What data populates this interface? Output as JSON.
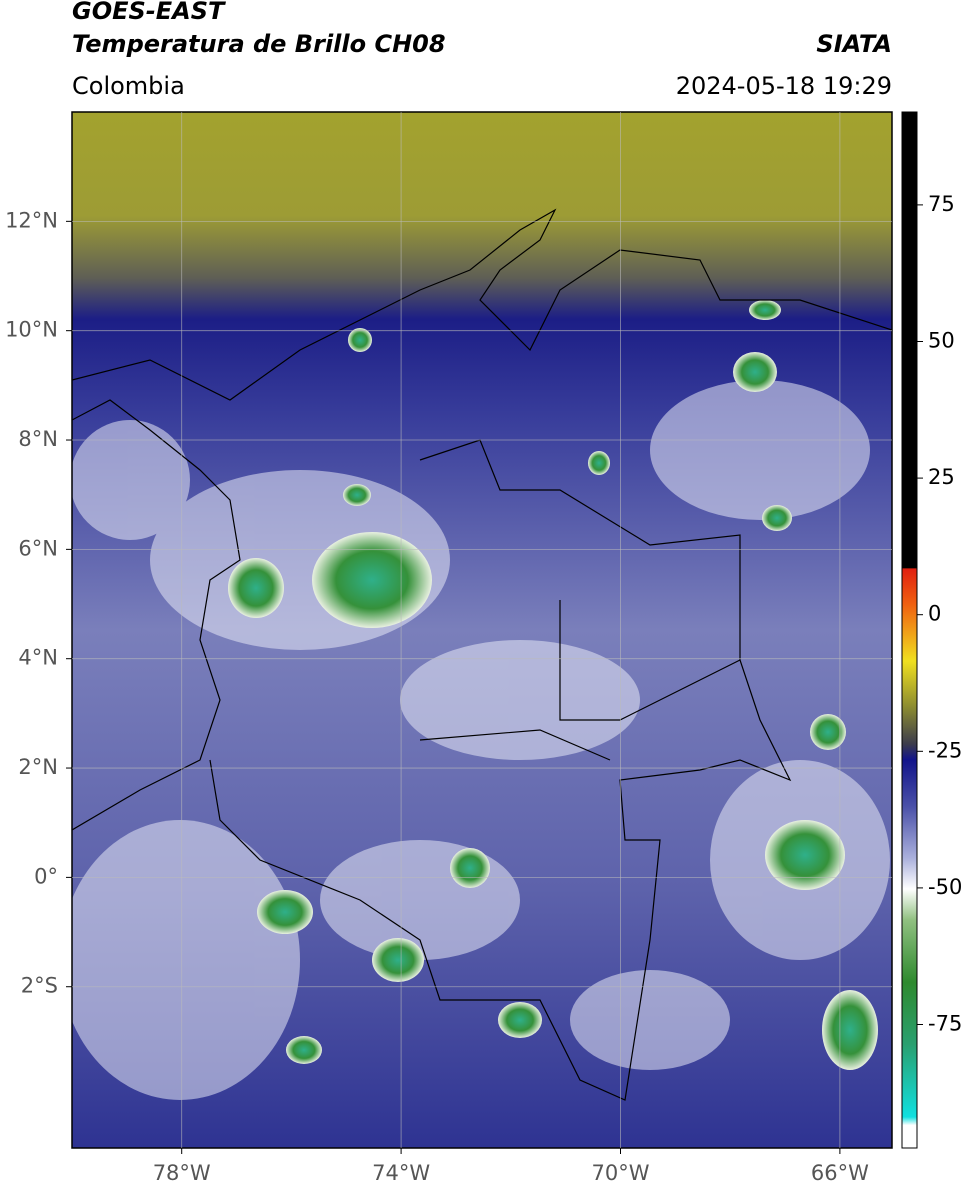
{
  "header": {
    "title": "GOES-EAST",
    "subtitle": "Temperatura de Brillo CH08",
    "source": "SIATA",
    "region": "Colombia",
    "datetime": "2024-05-18 19:29"
  },
  "map": {
    "lonlim": [
      -80.0,
      -65.05
    ],
    "latlim": [
      -4.95,
      14.0
    ],
    "lonticks": [
      {
        "value": -78,
        "label": "78°W"
      },
      {
        "value": -74,
        "label": "74°W"
      },
      {
        "value": -70,
        "label": "70°W"
      },
      {
        "value": -66,
        "label": "66°W"
      }
    ],
    "latticks": [
      {
        "value": 12,
        "label": "12°N"
      },
      {
        "value": 10,
        "label": "10°N"
      },
      {
        "value": 8,
        "label": "8°N"
      },
      {
        "value": 6,
        "label": "6°N"
      },
      {
        "value": 4,
        "label": "4°N"
      },
      {
        "value": 2,
        "label": "2°N"
      },
      {
        "value": 0,
        "label": "0°"
      },
      {
        "value": -2,
        "label": "2°S"
      }
    ],
    "grid": true
  },
  "colorbar": {
    "lim": [
      -97.6,
      92
    ],
    "ticks": [
      75,
      50,
      25,
      0,
      -25,
      -50,
      -75
    ]
  }
}
